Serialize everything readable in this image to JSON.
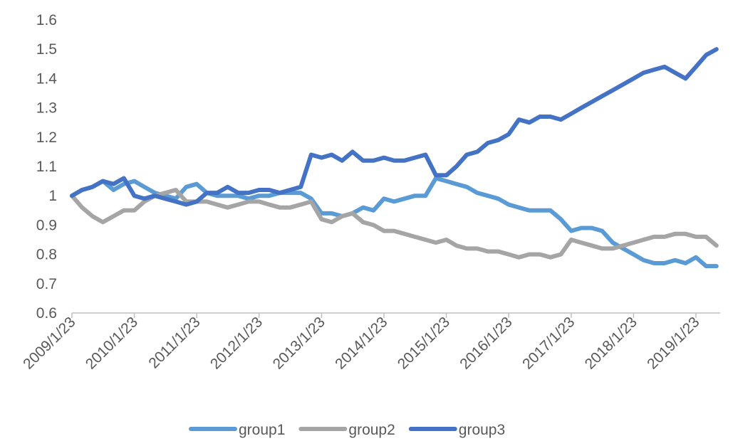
{
  "chart_data": {
    "type": "line",
    "title": "",
    "xlabel": "",
    "ylabel": "",
    "ylim": [
      0.6,
      1.6
    ],
    "y_ticks": [
      "0.6",
      "0.7",
      "0.8",
      "0.9",
      "1",
      "1.1",
      "1.2",
      "1.3",
      "1.4",
      "1.5",
      "1.6"
    ],
    "x_tick_labels": [
      "2009/1/23",
      "2010/1/23",
      "2011/1/23",
      "2012/1/23",
      "2013/1/23",
      "2014/1/23",
      "2015/1/23",
      "2016/1/23",
      "2017/1/23",
      "2018/1/23",
      "2019/1/23"
    ],
    "grid": false,
    "legend_position": "bottom",
    "series": [
      {
        "name": "group1",
        "color": "#5B9BD5",
        "points": [
          [
            "2009/1/23",
            1.0
          ],
          [
            "2009/3/23",
            1.02
          ],
          [
            "2009/5/23",
            1.03
          ],
          [
            "2009/7/23",
            1.05
          ],
          [
            "2009/9/23",
            1.02
          ],
          [
            "2009/11/23",
            1.04
          ],
          [
            "2010/1/23",
            1.05
          ],
          [
            "2010/3/23",
            1.03
          ],
          [
            "2010/5/23",
            1.01
          ],
          [
            "2010/7/23",
            1.0
          ],
          [
            "2010/9/23",
            0.99
          ],
          [
            "2010/11/23",
            1.03
          ],
          [
            "2011/1/23",
            1.04
          ],
          [
            "2011/3/23",
            1.01
          ],
          [
            "2011/5/23",
            1.0
          ],
          [
            "2011/7/23",
            1.0
          ],
          [
            "2011/9/23",
            1.0
          ],
          [
            "2011/11/23",
            0.99
          ],
          [
            "2012/1/23",
            1.0
          ],
          [
            "2012/3/23",
            1.0
          ],
          [
            "2012/5/23",
            1.01
          ],
          [
            "2012/7/23",
            1.01
          ],
          [
            "2012/9/23",
            1.01
          ],
          [
            "2012/11/23",
            0.99
          ],
          [
            "2013/1/23",
            0.94
          ],
          [
            "2013/3/23",
            0.94
          ],
          [
            "2013/5/23",
            0.93
          ],
          [
            "2013/7/23",
            0.94
          ],
          [
            "2013/9/23",
            0.96
          ],
          [
            "2013/11/23",
            0.95
          ],
          [
            "2014/1/23",
            0.99
          ],
          [
            "2014/3/23",
            0.98
          ],
          [
            "2014/5/23",
            0.99
          ],
          [
            "2014/7/23",
            1.0
          ],
          [
            "2014/9/23",
            1.0
          ],
          [
            "2014/11/23",
            1.06
          ],
          [
            "2015/1/23",
            1.05
          ],
          [
            "2015/3/23",
            1.04
          ],
          [
            "2015/5/23",
            1.03
          ],
          [
            "2015/7/23",
            1.01
          ],
          [
            "2015/9/23",
            1.0
          ],
          [
            "2015/11/23",
            0.99
          ],
          [
            "2016/1/23",
            0.97
          ],
          [
            "2016/3/23",
            0.96
          ],
          [
            "2016/5/23",
            0.95
          ],
          [
            "2016/7/23",
            0.95
          ],
          [
            "2016/9/23",
            0.95
          ],
          [
            "2016/11/23",
            0.92
          ],
          [
            "2017/1/23",
            0.88
          ],
          [
            "2017/3/23",
            0.89
          ],
          [
            "2017/5/23",
            0.89
          ],
          [
            "2017/7/23",
            0.88
          ],
          [
            "2017/9/23",
            0.84
          ],
          [
            "2017/11/23",
            0.82
          ],
          [
            "2018/1/23",
            0.8
          ],
          [
            "2018/3/23",
            0.78
          ],
          [
            "2018/5/23",
            0.77
          ],
          [
            "2018/7/23",
            0.77
          ],
          [
            "2018/9/23",
            0.78
          ],
          [
            "2018/11/23",
            0.77
          ],
          [
            "2019/1/23",
            0.79
          ],
          [
            "2019/3/23",
            0.76
          ],
          [
            "2019/5/23",
            0.76
          ]
        ]
      },
      {
        "name": "group2",
        "color": "#A5A5A5",
        "points": [
          [
            "2009/1/23",
            1.0
          ],
          [
            "2009/3/23",
            0.96
          ],
          [
            "2009/5/23",
            0.93
          ],
          [
            "2009/7/23",
            0.91
          ],
          [
            "2009/9/23",
            0.93
          ],
          [
            "2009/11/23",
            0.95
          ],
          [
            "2010/1/23",
            0.95
          ],
          [
            "2010/3/23",
            0.98
          ],
          [
            "2010/5/23",
            1.0
          ],
          [
            "2010/7/23",
            1.01
          ],
          [
            "2010/9/23",
            1.02
          ],
          [
            "2010/11/23",
            0.98
          ],
          [
            "2011/1/23",
            0.98
          ],
          [
            "2011/3/23",
            0.98
          ],
          [
            "2011/5/23",
            0.97
          ],
          [
            "2011/7/23",
            0.96
          ],
          [
            "2011/9/23",
            0.97
          ],
          [
            "2011/11/23",
            0.98
          ],
          [
            "2012/1/23",
            0.98
          ],
          [
            "2012/3/23",
            0.97
          ],
          [
            "2012/5/23",
            0.96
          ],
          [
            "2012/7/23",
            0.96
          ],
          [
            "2012/9/23",
            0.97
          ],
          [
            "2012/11/23",
            0.98
          ],
          [
            "2013/1/23",
            0.92
          ],
          [
            "2013/3/23",
            0.91
          ],
          [
            "2013/5/23",
            0.93
          ],
          [
            "2013/7/23",
            0.94
          ],
          [
            "2013/9/23",
            0.91
          ],
          [
            "2013/11/23",
            0.9
          ],
          [
            "2014/1/23",
            0.88
          ],
          [
            "2014/3/23",
            0.88
          ],
          [
            "2014/5/23",
            0.87
          ],
          [
            "2014/7/23",
            0.86
          ],
          [
            "2014/9/23",
            0.85
          ],
          [
            "2014/11/23",
            0.84
          ],
          [
            "2015/1/23",
            0.85
          ],
          [
            "2015/3/23",
            0.83
          ],
          [
            "2015/5/23",
            0.82
          ],
          [
            "2015/7/23",
            0.82
          ],
          [
            "2015/9/23",
            0.81
          ],
          [
            "2015/11/23",
            0.81
          ],
          [
            "2016/1/23",
            0.8
          ],
          [
            "2016/3/23",
            0.79
          ],
          [
            "2016/5/23",
            0.8
          ],
          [
            "2016/7/23",
            0.8
          ],
          [
            "2016/9/23",
            0.79
          ],
          [
            "2016/11/23",
            0.8
          ],
          [
            "2017/1/23",
            0.85
          ],
          [
            "2017/3/23",
            0.84
          ],
          [
            "2017/5/23",
            0.83
          ],
          [
            "2017/7/23",
            0.82
          ],
          [
            "2017/9/23",
            0.82
          ],
          [
            "2017/11/23",
            0.83
          ],
          [
            "2018/1/23",
            0.84
          ],
          [
            "2018/3/23",
            0.85
          ],
          [
            "2018/5/23",
            0.86
          ],
          [
            "2018/7/23",
            0.86
          ],
          [
            "2018/9/23",
            0.87
          ],
          [
            "2018/11/23",
            0.87
          ],
          [
            "2019/1/23",
            0.86
          ],
          [
            "2019/3/23",
            0.86
          ],
          [
            "2019/5/23",
            0.83
          ]
        ]
      },
      {
        "name": "group3",
        "color": "#4472C4",
        "points": [
          [
            "2009/1/23",
            1.0
          ],
          [
            "2009/3/23",
            1.02
          ],
          [
            "2009/5/23",
            1.03
          ],
          [
            "2009/7/23",
            1.05
          ],
          [
            "2009/9/23",
            1.04
          ],
          [
            "2009/11/23",
            1.06
          ],
          [
            "2010/1/23",
            1.0
          ],
          [
            "2010/3/23",
            0.99
          ],
          [
            "2010/5/23",
            1.0
          ],
          [
            "2010/7/23",
            0.99
          ],
          [
            "2010/9/23",
            0.98
          ],
          [
            "2010/11/23",
            0.97
          ],
          [
            "2011/1/23",
            0.98
          ],
          [
            "2011/3/23",
            1.01
          ],
          [
            "2011/5/23",
            1.01
          ],
          [
            "2011/7/23",
            1.03
          ],
          [
            "2011/9/23",
            1.01
          ],
          [
            "2011/11/23",
            1.01
          ],
          [
            "2012/1/23",
            1.02
          ],
          [
            "2012/3/23",
            1.02
          ],
          [
            "2012/5/23",
            1.01
          ],
          [
            "2012/7/23",
            1.02
          ],
          [
            "2012/9/23",
            1.03
          ],
          [
            "2012/11/23",
            1.14
          ],
          [
            "2013/1/23",
            1.13
          ],
          [
            "2013/3/23",
            1.14
          ],
          [
            "2013/5/23",
            1.12
          ],
          [
            "2013/7/23",
            1.15
          ],
          [
            "2013/9/23",
            1.12
          ],
          [
            "2013/11/23",
            1.12
          ],
          [
            "2014/1/23",
            1.13
          ],
          [
            "2014/3/23",
            1.12
          ],
          [
            "2014/5/23",
            1.12
          ],
          [
            "2014/7/23",
            1.13
          ],
          [
            "2014/9/23",
            1.14
          ],
          [
            "2014/11/23",
            1.07
          ],
          [
            "2015/1/23",
            1.07
          ],
          [
            "2015/3/23",
            1.1
          ],
          [
            "2015/5/23",
            1.14
          ],
          [
            "2015/7/23",
            1.15
          ],
          [
            "2015/9/23",
            1.18
          ],
          [
            "2015/11/23",
            1.19
          ],
          [
            "2016/1/23",
            1.21
          ],
          [
            "2016/3/23",
            1.26
          ],
          [
            "2016/5/23",
            1.25
          ],
          [
            "2016/7/23",
            1.27
          ],
          [
            "2016/9/23",
            1.27
          ],
          [
            "2016/11/23",
            1.26
          ],
          [
            "2017/1/23",
            1.28
          ],
          [
            "2017/3/23",
            1.3
          ],
          [
            "2017/5/23",
            1.32
          ],
          [
            "2017/7/23",
            1.34
          ],
          [
            "2017/9/23",
            1.36
          ],
          [
            "2017/11/23",
            1.38
          ],
          [
            "2018/1/23",
            1.4
          ],
          [
            "2018/3/23",
            1.42
          ],
          [
            "2018/5/23",
            1.43
          ],
          [
            "2018/7/23",
            1.44
          ],
          [
            "2018/9/23",
            1.42
          ],
          [
            "2018/11/23",
            1.4
          ],
          [
            "2019/1/23",
            1.44
          ],
          [
            "2019/3/23",
            1.48
          ],
          [
            "2019/5/23",
            1.5
          ]
        ]
      }
    ]
  }
}
